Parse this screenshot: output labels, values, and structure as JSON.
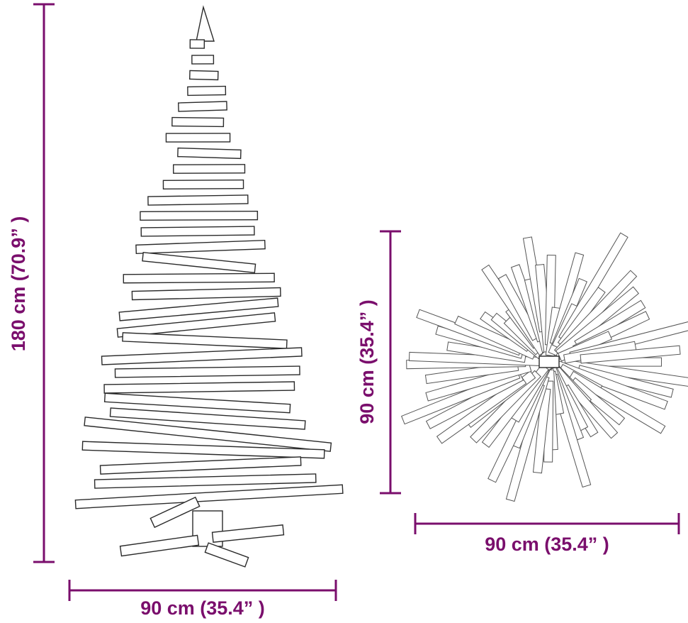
{
  "dimensions": {
    "tree_height": "180 cm (70.9” )",
    "tree_width": "90 cm (35.4” )",
    "top_depth": "90 cm (35.4” )",
    "top_width": "90 cm (35.4” )"
  }
}
